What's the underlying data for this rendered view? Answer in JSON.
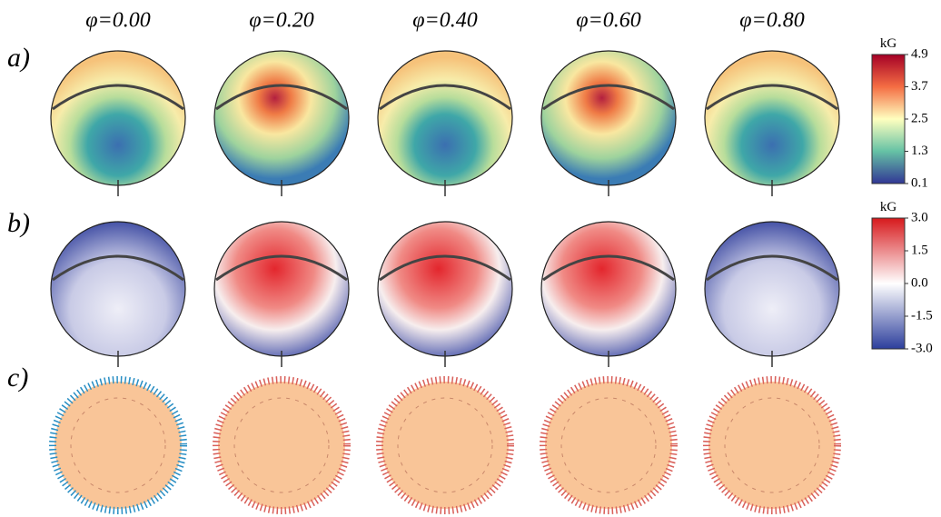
{
  "figure": {
    "phases": [
      "φ=0.00",
      "φ=0.20",
      "φ=0.40",
      "φ=0.60",
      "φ=0.80"
    ],
    "rows": [
      "a)",
      "b)",
      "c)"
    ],
    "colorbars": [
      {
        "unit": "kG",
        "ticks": [
          "4.9",
          "3.7",
          "2.5",
          "1.3",
          "0.1"
        ]
      },
      {
        "unit": "kG",
        "ticks": [
          "3.0",
          "1.5",
          "0.0",
          "-1.5",
          "-3.0"
        ]
      }
    ]
  }
}
